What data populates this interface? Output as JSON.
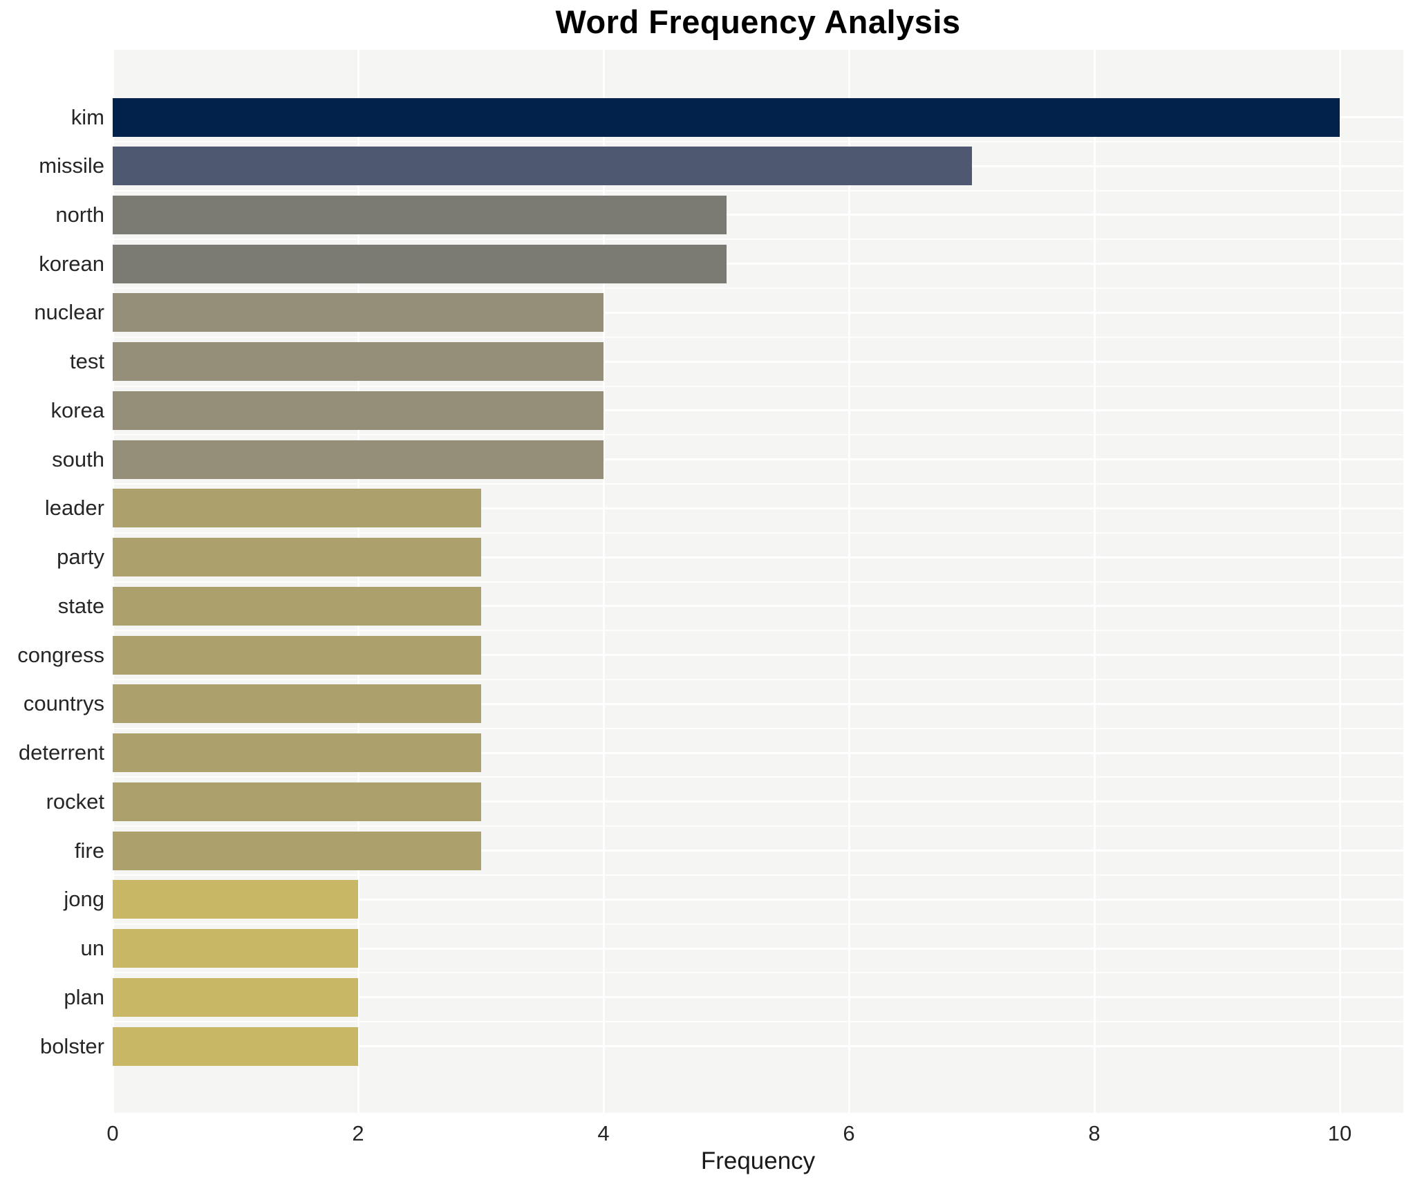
{
  "title": "Word Frequency Analysis",
  "chart_data": {
    "type": "bar",
    "orientation": "horizontal",
    "title": "Word Frequency Analysis",
    "xlabel": "Frequency",
    "ylabel": "",
    "categories": [
      "kim",
      "missile",
      "north",
      "korean",
      "nuclear",
      "test",
      "korea",
      "south",
      "leader",
      "party",
      "state",
      "congress",
      "countrys",
      "deterrent",
      "rocket",
      "fire",
      "jong",
      "un",
      "plan",
      "bolster"
    ],
    "values": [
      10,
      7,
      5,
      5,
      4,
      4,
      4,
      4,
      3,
      3,
      3,
      3,
      3,
      3,
      3,
      3,
      2,
      2,
      2,
      2
    ],
    "xlim": [
      0,
      10.5
    ],
    "x_ticks": [
      0,
      2,
      4,
      6,
      8,
      10
    ],
    "grid": "white major gridlines on light-gray panel, horizontal major lines at category centers, minor lines between categories",
    "legend": false,
    "bar_colors_by_value": {
      "10": "#02214b",
      "7": "#4e5870",
      "5": "#7b7a73",
      "4": "#958e79",
      "3": "#aca16c",
      "2": "#c8b765"
    }
  },
  "style": {
    "page_bg": "#ffffff",
    "panel_bg": "#f5f5f3",
    "grid_major_color": "#ffffff",
    "grid_minor_color": "rgba(255,255,255,0.75)",
    "title_color": "#000000",
    "label_color": "#262626",
    "axis_label_color": "#1a1a1a"
  }
}
